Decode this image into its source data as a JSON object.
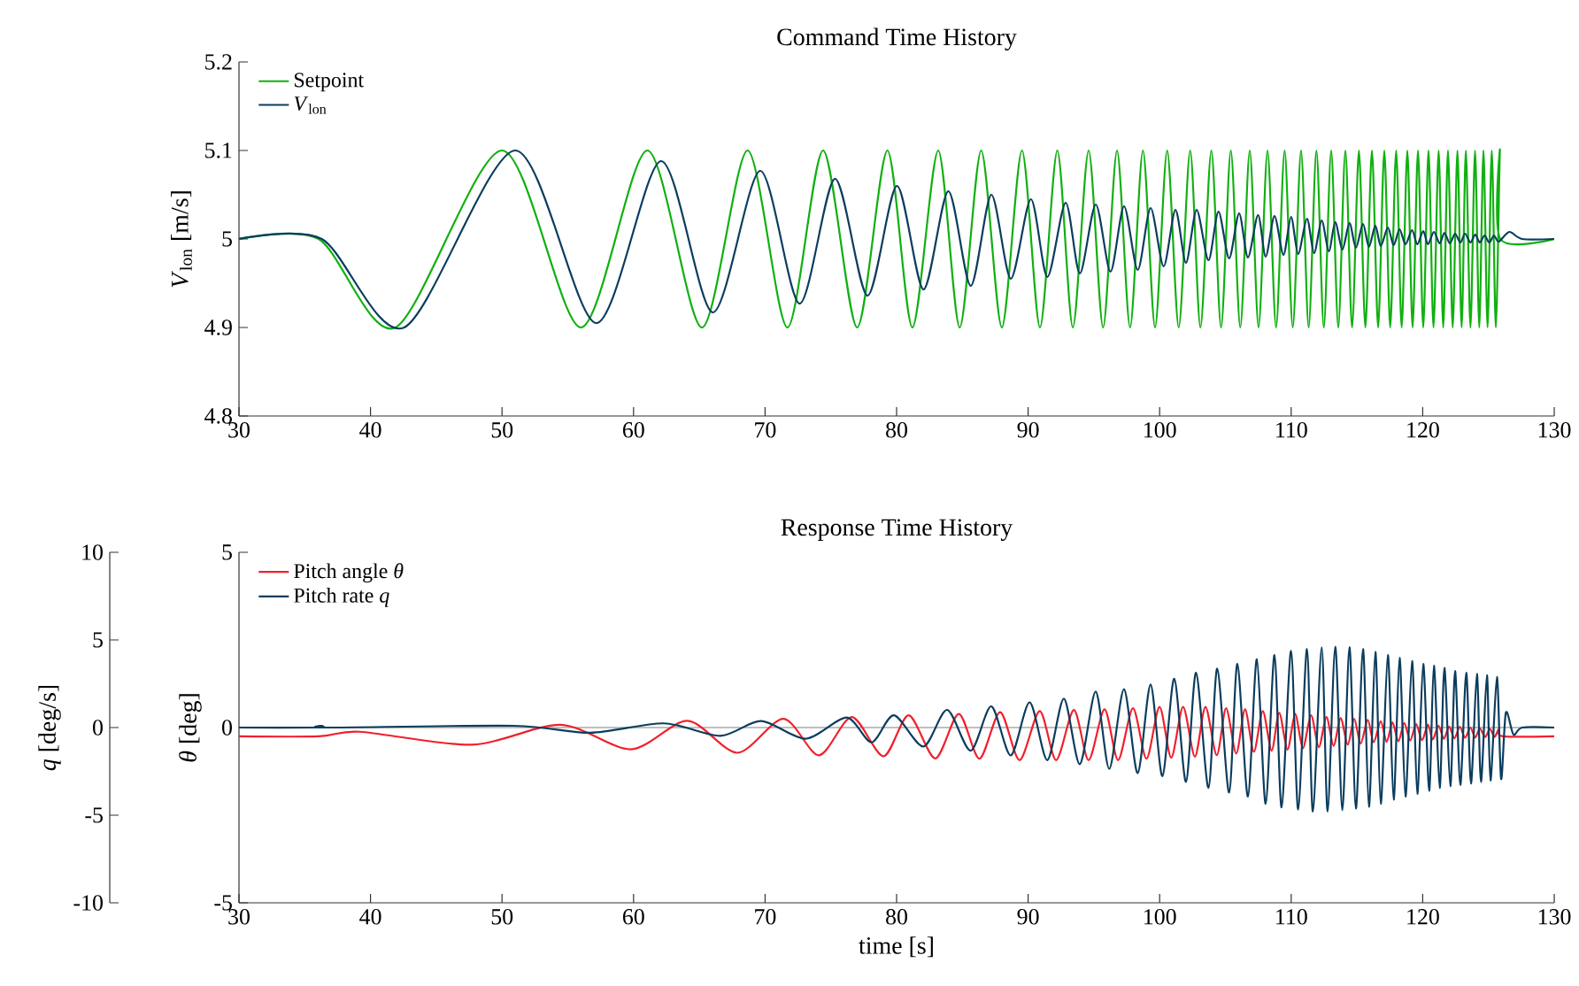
{
  "chart_data": [
    {
      "type": "line",
      "title": "Command Time History",
      "ylabel": "*V*$_{lon}$ [m/s]",
      "xlim": [
        30,
        130
      ],
      "xticks": [
        30,
        40,
        50,
        60,
        70,
        80,
        90,
        100,
        110,
        120,
        130
      ],
      "ylim": [
        4.8,
        5.2
      ],
      "yticks": [
        4.8,
        4.9,
        5,
        5.1,
        5.2
      ],
      "legend": "top left",
      "series": [
        {
          "name": "Setpoint",
          "color": "#10b010",
          "x": [
            30,
            36.06,
            41.9,
            50.0,
            56.0,
            61.05,
            65.2,
            68.67,
            71.7,
            74.41,
            77.0,
            79.3,
            81.2,
            83.16,
            84.8,
            86.43,
            88.0,
            89.53,
            90.9,
            92.22,
            93.4,
            94.6,
            95.7,
            96.76,
            97.75,
            98.73,
            99.65,
            100.57,
            101.45,
            102.32,
            103.1,
            103.93,
            104.67,
            105.41,
            106.13,
            106.85,
            107.52,
            108.2,
            108.85,
            109.5,
            110.12,
            110.75,
            111.33,
            111.92,
            112.48,
            113.04,
            113.58,
            114.12,
            114.63,
            115.15,
            115.64,
            116.14,
            116.61,
            117.08,
            117.53,
            117.98,
            118.4,
            118.83,
            119.23,
            119.64,
            120.04,
            120.44,
            120.82,
            121.21,
            121.56,
            121.92,
            122.28,
            122.64,
            122.96,
            123.28,
            123.63,
            123.98,
            124.3,
            124.62,
            124.93,
            125.25,
            125.56,
            125.87,
            125.9,
            130
          ],
          "values": [
            5,
            5,
            4.9,
            5.1,
            4.9,
            5.1,
            4.9,
            5.1,
            4.9,
            5.1,
            4.9,
            5.1,
            4.9,
            5.1,
            4.9,
            5.1,
            4.9,
            5.1,
            4.9,
            5.1,
            4.9,
            5.1,
            4.9,
            5.1,
            4.9,
            5.1,
            4.9,
            5.1,
            4.9,
            5.1,
            4.9,
            5.1,
            4.9,
            5.1,
            4.9,
            5.1,
            4.9,
            5.1,
            4.9,
            5.1,
            4.9,
            5.1,
            4.9,
            5.1,
            4.9,
            5.1,
            4.9,
            5.1,
            4.9,
            5.1,
            4.9,
            5.1,
            4.9,
            5.1,
            4.9,
            5.1,
            4.9,
            5.1,
            4.9,
            5.1,
            4.9,
            5.1,
            4.9,
            5.1,
            4.9,
            5.1,
            4.9,
            5.1,
            4.9,
            5.1,
            4.9,
            5.1,
            4.9,
            5.1,
            4.9,
            5.1,
            4.9,
            5.1,
            5,
            5
          ]
        },
        {
          "name": "*V*$_{lon}$",
          "color": "#0b3d5e",
          "x": [
            30,
            36.3,
            42.56,
            51.0,
            57.15,
            62.08,
            66.02,
            69.62,
            72.62,
            75.31,
            77.78,
            80.02,
            82.04,
            83.93,
            85.63,
            87.2,
            88.68,
            90.21,
            91.46,
            92.85,
            93.93,
            95.14,
            96.26,
            97.29,
            98.33,
            99.31,
            100.3,
            101.2,
            102.0,
            102.81,
            103.71,
            104.47,
            105.28,
            106.04,
            106.71,
            107.48,
            108.06,
            108.73,
            109.41,
            109.99,
            110.53,
            111.2,
            111.74,
            112.32,
            112.86,
            113.35,
            113.89,
            114.43,
            114.92,
            115.46,
            115.91,
            116.4,
            116.81,
            117.35,
            117.79,
            118.24,
            118.69,
            119.19,
            119.59,
            120.04,
            120.4,
            120.85,
            121.29,
            121.65,
            122.06,
            122.46,
            122.86,
            123.22,
            123.63,
            123.99,
            124.34,
            124.7,
            125.06,
            125.42,
            125.78,
            126.59,
            127.57,
            130
          ],
          "values": [
            5,
            5,
            4.9,
            5.1,
            4.905,
            5.088,
            4.917,
            5.077,
            4.927,
            5.068,
            4.936,
            5.06,
            4.943,
            5.054,
            4.947,
            5.05,
            4.955,
            5.045,
            4.957,
            5.041,
            4.961,
            5.039,
            4.963,
            5.037,
            4.965,
            5.035,
            4.969,
            5.033,
            4.973,
            5.033,
            4.976,
            5.031,
            4.978,
            5.029,
            4.979,
            5.027,
            4.98,
            5.026,
            4.982,
            5.025,
            4.983,
            5.023,
            4.984,
            5.021,
            4.986,
            5.019,
            4.988,
            5.018,
            4.99,
            5.017,
            4.991,
            5.015,
            4.992,
            5.013,
            4.993,
            5.011,
            4.994,
            5.01,
            4.994,
            5.009,
            4.994,
            5.008,
            4.995,
            5.007,
            4.995,
            5.006,
            4.996,
            5.006,
            4.996,
            5.005,
            4.996,
            5.004,
            4.996,
            5.004,
            4.997,
            5.008,
            5,
            5
          ]
        }
      ]
    },
    {
      "type": "line",
      "title": "Response Time History",
      "xlabel": "time [s]",
      "ylabel": "*θ* [deg]",
      "y2label": "*q* [deg/s]",
      "xlim": [
        30,
        130
      ],
      "xticks": [
        30,
        40,
        50,
        60,
        70,
        80,
        90,
        100,
        110,
        120,
        130
      ],
      "ylim": [
        -5,
        5
      ],
      "yticks": [
        -5,
        0,
        5
      ],
      "y2lim": [
        -10,
        10
      ],
      "y2ticks": [
        -10,
        -5,
        0,
        5,
        10
      ],
      "legend": "top left",
      "ref_lines": [
        {
          "axis": "y",
          "value": 0,
          "color": "#808080"
        }
      ],
      "series": [
        {
          "name": "Pitch angle *θ*",
          "color": "#f0202c",
          "x": [
            30,
            36.06,
            39.19,
            47.7,
            54.45,
            59.8,
            64.1,
            67.9,
            71.4,
            74.1,
            76.6,
            79.0,
            80.92,
            82.94,
            84.73,
            86.3,
            87.87,
            89.35,
            90.88,
            92.13,
            93.48,
            94.6,
            95.81,
            96.84,
            97.97,
            99.0,
            99.99,
            100.88,
            101.78,
            102.68,
            103.48,
            104.34,
            105.05,
            105.82,
            106.49,
            107.16,
            107.84,
            108.51,
            109.09,
            109.72,
            110.3,
            110.89,
            111.51,
            112.1,
            112.68,
            113.22,
            113.76,
            114.3,
            114.79,
            115.28,
            115.82,
            116.27,
            116.81,
            117.26,
            117.7,
            118.15,
            118.6,
            119.05,
            119.5,
            119.95,
            120.4,
            120.76,
            121.2,
            121.61,
            122.01,
            122.41,
            122.82,
            123.22,
            123.63,
            123.99,
            124.34,
            124.75,
            125.11,
            125.47,
            125.78,
            126.1,
            130
          ],
          "values": [
            -0.25,
            -0.25,
            -0.12,
            -0.49,
            0.08,
            -0.62,
            0.19,
            -0.72,
            0.25,
            -0.79,
            0.3,
            -0.82,
            0.35,
            -0.88,
            0.39,
            -0.89,
            0.44,
            -0.93,
            0.47,
            -0.93,
            0.5,
            -0.93,
            0.52,
            -0.93,
            0.55,
            -0.89,
            0.59,
            -0.86,
            0.59,
            -0.83,
            0.59,
            -0.79,
            0.55,
            -0.74,
            0.52,
            -0.69,
            0.47,
            -0.66,
            0.42,
            -0.63,
            0.39,
            -0.59,
            0.35,
            -0.56,
            0.3,
            -0.52,
            0.27,
            -0.49,
            0.25,
            -0.46,
            0.22,
            -0.42,
            0.18,
            -0.41,
            0.15,
            -0.39,
            0.13,
            -0.37,
            0.1,
            -0.36,
            0.08,
            -0.34,
            0.05,
            -0.32,
            0.03,
            -0.31,
            0.02,
            -0.29,
            0.0,
            -0.29,
            -0.02,
            -0.27,
            -0.04,
            -0.27,
            -0.05,
            -0.25,
            -0.25
          ]
        },
        {
          "name": "Pitch rate *q*",
          "color": "#0b3d5e",
          "axis": "y2",
          "x": [
            30,
            36.0,
            36.3,
            36.8,
            50.9,
            56.7,
            62.3,
            66.6,
            69.7,
            73.1,
            76.2,
            78.1,
            79.8,
            82.04,
            83.84,
            85.63,
            87.2,
            88.68,
            90.12,
            91.46,
            92.72,
            93.93,
            95.14,
            96.17,
            97.29,
            98.33,
            99.31,
            100.21,
            101.11,
            102.0,
            102.77,
            103.71,
            104.38,
            105.28,
            105.91,
            106.71,
            107.39,
            108.06,
            108.73,
            109.27,
            109.99,
            110.53,
            111.2,
            111.65,
            112.32,
            112.77,
            113.35,
            113.89,
            114.43,
            114.92,
            115.46,
            115.91,
            116.4,
            116.81,
            117.35,
            117.79,
            118.24,
            118.69,
            119.19,
            119.59,
            120.04,
            120.49,
            120.85,
            121.29,
            121.65,
            122.1,
            122.46,
            122.86,
            123.31,
            123.67,
            124.12,
            124.43,
            124.88,
            125.15,
            125.64,
            125.96,
            126.32,
            126.9,
            127.57,
            130
          ],
          "values": [
            0,
            0,
            0.1,
            0,
            0.1,
            -0.3,
            0.24,
            -0.47,
            0.37,
            -0.64,
            0.57,
            -0.84,
            0.7,
            -1.08,
            1.01,
            -1.32,
            1.21,
            -1.59,
            1.44,
            -1.86,
            1.65,
            -2.09,
            2.05,
            -2.36,
            2.19,
            -2.6,
            2.46,
            -2.77,
            2.79,
            -3.1,
            3.13,
            -3.44,
            3.36,
            -3.71,
            3.63,
            -3.94,
            3.9,
            -4.35,
            4.14,
            -4.55,
            4.38,
            -4.68,
            4.48,
            -4.79,
            4.58,
            -4.79,
            4.61,
            -4.72,
            4.58,
            -4.62,
            4.48,
            -4.52,
            4.31,
            -4.35,
            4.14,
            -4.11,
            3.97,
            -3.94,
            3.8,
            -3.78,
            3.63,
            -3.61,
            3.53,
            -3.44,
            3.4,
            -3.34,
            3.23,
            -3.27,
            3.13,
            -3.2,
            3.06,
            -3.1,
            2.99,
            -3.03,
            2.89,
            -2.93,
            0.84,
            -0.4,
            0,
            0
          ]
        }
      ]
    }
  ]
}
